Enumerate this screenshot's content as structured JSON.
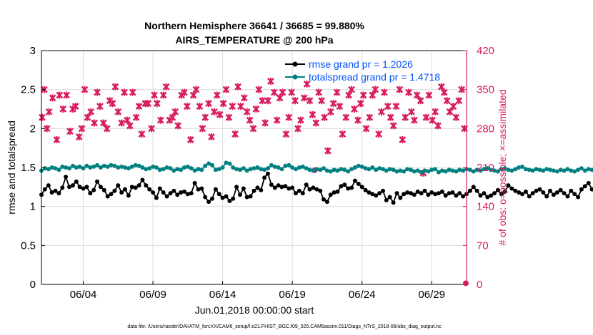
{
  "chart_data": {
    "type": "line",
    "title": "Northern Hemisphere 36641 / 36685 = 99.880%",
    "subtitle": "AIRS_TEMPERATURE @ 200 hPa",
    "xlabel": "Jun.01,2018 00:00:00 start",
    "ylabel": "rmse and totalspread",
    "y2label": "# of obs: o=possible; ×=assimilated",
    "footer": "data file: /Users/raeder/DAI/ATM_forcXX/CAM6_setup/f.e21.FHIST_BGC.f09_025.CAM6assim.011/Diags_NTrS_2018-06/obs_diag_output.nc",
    "xlim": [
      1,
      31.5
    ],
    "ylim": [
      0,
      3
    ],
    "y2lim": [
      0,
      420
    ],
    "x_ticks": [
      4,
      9,
      14,
      19,
      24,
      29
    ],
    "x_tick_labels": [
      "06/04",
      "06/09",
      "06/14",
      "06/19",
      "06/24",
      "06/29"
    ],
    "y_ticks": [
      0,
      0.5,
      1,
      1.5,
      2,
      2.5,
      3
    ],
    "y_tick_labels": [
      "0",
      "0.5",
      "1",
      "1.5",
      "2",
      "2.5",
      "3"
    ],
    "y2_ticks": [
      0,
      70,
      140,
      210,
      280,
      350,
      420
    ],
    "y2_tick_labels": [
      "0",
      "70",
      "140",
      "210",
      "280",
      "350",
      "420"
    ],
    "grid": true,
    "legend_position": "top-right",
    "x_step_days": 0.25,
    "colors": {
      "rmse": "#000000",
      "spread": "#008080",
      "obs": "#d81b60",
      "right_axis": "#d81b60",
      "legend_text": "#0050ff"
    },
    "series": [
      {
        "name": "rmse grand pr = 1.2026",
        "axis": "left",
        "values": [
          1.15,
          1.22,
          1.27,
          1.18,
          1.2,
          1.17,
          1.24,
          1.38,
          1.25,
          1.27,
          1.32,
          1.25,
          1.23,
          1.25,
          1.17,
          1.21,
          1.32,
          1.25,
          1.21,
          1.13,
          1.16,
          1.2,
          1.27,
          1.18,
          1.22,
          1.14,
          1.25,
          1.24,
          1.27,
          1.34,
          1.27,
          1.22,
          1.18,
          1.11,
          1.23,
          1.18,
          1.13,
          1.17,
          1.2,
          1.15,
          1.18,
          1.19,
          1.16,
          1.17,
          1.3,
          1.22,
          1.23,
          1.12,
          1.06,
          1.1,
          1.22,
          1.16,
          1.11,
          1.13,
          1.07,
          1.1,
          1.25,
          1.15,
          1.23,
          1.12,
          1.13,
          1.2,
          1.24,
          1.21,
          1.37,
          1.42,
          1.28,
          1.24,
          1.27,
          1.25,
          1.26,
          1.23,
          1.24,
          1.17,
          1.2,
          1.17,
          1.28,
          1.22,
          1.24,
          1.22,
          1.2,
          1.09,
          1.06,
          1.15,
          1.18,
          1.19,
          1.26,
          1.28,
          1.23,
          1.24,
          1.33,
          1.29,
          1.25,
          1.21,
          1.18,
          1.16,
          1.14,
          1.17,
          1.2,
          1.08,
          1.12,
          1.05,
          1.17,
          1.11,
          1.16,
          1.18,
          1.17,
          1.15,
          1.19,
          1.17,
          1.2,
          1.15,
          1.18,
          1.16,
          1.17,
          1.19,
          1.14,
          1.17,
          1.18,
          1.14,
          1.17,
          1.13,
          1.16,
          1.2,
          1.25,
          1.2,
          1.14,
          1.17,
          1.12,
          1.14,
          1.17,
          1.21,
          1.16,
          1.19,
          1.27,
          1.23,
          1.2,
          1.18,
          1.16,
          1.19,
          1.13,
          1.17,
          1.2,
          1.22,
          1.18,
          1.13,
          1.2,
          1.15,
          1.18,
          1.21,
          1.17,
          1.13,
          1.2,
          1.16,
          1.12,
          1.22,
          1.26,
          1.3,
          1.22,
          1.25,
          1.21,
          1.17,
          1.15,
          1.18,
          1.21,
          1.25,
          1.28,
          1.22,
          1.19,
          1.24,
          1.21,
          1.18,
          1.22,
          1.26,
          1.2,
          1.16,
          1.18,
          1.22,
          1.17,
          1.15,
          1.19,
          1.23,
          1.16,
          1.18,
          1.27,
          1.21,
          1.17,
          1.14,
          1.15,
          1.13,
          1.18,
          1.15,
          1.22,
          1.13,
          1.14,
          1.13,
          1.24,
          1.16,
          1.21,
          1.14,
          1.16,
          1.21,
          1.18,
          1.15,
          1.13,
          1.18,
          1.19,
          1.32,
          1.26,
          1.29,
          1.2,
          1.17,
          1.23,
          1.18,
          1.25,
          1.36,
          1.2,
          1.17,
          1.13,
          1.23,
          1.25,
          1.33,
          1.29,
          1.21,
          1.17,
          1.25,
          1.2,
          1.22,
          1.16,
          1.17,
          1.21,
          1.12,
          1.13,
          1.14
        ]
      },
      {
        "name": "totalspread grand pr = 1.4718",
        "axis": "left",
        "values": [
          1.46,
          1.49,
          1.48,
          1.5,
          1.49,
          1.47,
          1.51,
          1.5,
          1.49,
          1.52,
          1.5,
          1.51,
          1.49,
          1.52,
          1.5,
          1.51,
          1.53,
          1.5,
          1.52,
          1.51,
          1.53,
          1.52,
          1.5,
          1.51,
          1.5,
          1.49,
          1.51,
          1.53,
          1.52,
          1.5,
          1.48,
          1.49,
          1.51,
          1.5,
          1.47,
          1.48,
          1.5,
          1.49,
          1.46,
          1.48,
          1.47,
          1.5,
          1.51,
          1.49,
          1.46,
          1.48,
          1.47,
          1.52,
          1.55,
          1.53,
          1.47,
          1.48,
          1.5,
          1.56,
          1.55,
          1.5,
          1.48,
          1.47,
          1.49,
          1.46,
          1.48,
          1.49,
          1.5,
          1.48,
          1.47,
          1.49,
          1.53,
          1.51,
          1.5,
          1.48,
          1.52,
          1.53,
          1.5,
          1.48,
          1.5,
          1.51,
          1.49,
          1.47,
          1.46,
          1.48,
          1.47,
          1.49,
          1.46,
          1.45,
          1.47,
          1.46,
          1.48,
          1.47,
          1.45,
          1.48,
          1.5,
          1.52,
          1.51,
          1.49,
          1.48,
          1.5,
          1.47,
          1.49,
          1.48,
          1.46,
          1.48,
          1.47,
          1.45,
          1.46,
          1.45,
          1.48,
          1.47,
          1.45,
          1.46,
          1.44,
          1.46,
          1.45,
          1.47,
          1.48,
          1.44,
          1.46,
          1.45,
          1.47,
          1.46,
          1.45,
          1.47,
          1.46,
          1.48,
          1.47,
          1.45,
          1.47,
          1.46,
          1.48,
          1.49,
          1.47,
          1.46,
          1.45,
          1.48,
          1.49,
          1.47,
          1.46,
          1.48,
          1.5,
          1.51,
          1.48,
          1.47,
          1.46,
          1.48,
          1.47,
          1.46,
          1.48,
          1.47,
          1.46,
          1.45,
          1.47,
          1.46,
          1.48,
          1.46,
          1.45,
          1.47,
          1.49,
          1.46,
          1.48,
          1.47,
          1.49,
          1.5,
          1.48,
          1.47,
          1.49,
          1.51,
          1.5,
          1.48,
          1.46,
          1.48,
          1.47,
          1.49,
          1.48,
          1.46,
          1.47,
          1.49,
          1.48,
          1.47,
          1.45,
          1.47,
          1.48,
          1.5,
          1.49,
          1.47,
          1.46,
          1.48,
          1.49,
          1.5,
          1.47,
          1.49,
          1.51,
          1.5,
          1.48,
          1.47,
          1.49,
          1.5,
          1.51,
          1.49,
          1.47,
          1.48,
          1.5,
          1.49,
          1.47,
          1.46,
          1.48,
          1.47,
          1.49,
          1.48,
          1.46,
          1.47,
          1.48,
          1.5,
          1.49,
          1.47,
          1.49,
          1.48,
          1.47,
          1.49,
          1.51,
          1.5,
          1.48,
          1.47,
          1.49,
          1.48,
          1.47,
          1.49,
          1.47,
          1.46,
          1.48,
          1.47,
          1.49,
          1.48,
          1.47,
          1.46,
          1.48,
          1.49,
          1.48,
          1.47,
          1.5,
          1.49,
          1.51,
          1.5
        ]
      },
      {
        "name": "# of obs assimilated",
        "axis": "right",
        "marker": "x",
        "x": [
          1.05,
          1.2,
          1.4,
          1.55,
          1.8,
          2.1,
          2.3,
          2.55,
          2.8,
          3.05,
          3.25,
          3.45,
          3.7,
          3.9,
          4.1,
          4.3,
          4.55,
          4.8,
          5.0,
          5.2,
          5.45,
          5.7,
          5.9,
          6.1,
          6.3,
          6.5,
          6.75,
          6.95,
          7.15,
          7.35,
          7.55,
          7.8,
          8.0,
          8.2,
          8.45,
          8.65,
          8.9,
          9.1,
          9.3,
          9.55,
          9.75,
          9.95,
          10.2,
          10.4,
          10.6,
          10.8,
          11.05,
          11.25,
          11.45,
          11.7,
          11.9,
          12.1,
          12.35,
          12.55,
          12.75,
          13.0,
          13.2,
          13.4,
          13.6,
          13.8,
          14.05,
          14.25,
          14.45,
          14.7,
          14.9,
          15.1,
          15.3,
          15.55,
          15.75,
          15.95,
          16.2,
          16.4,
          16.6,
          16.85,
          17.05,
          17.25,
          17.45,
          17.7,
          17.9,
          18.1,
          18.3,
          18.55,
          18.75,
          18.95,
          19.2,
          19.4,
          19.6,
          19.85,
          20.05,
          20.25,
          20.45,
          20.7,
          20.9,
          21.1,
          21.3,
          21.55,
          21.75,
          21.95,
          22.2,
          22.4,
          22.6,
          22.85,
          23.05,
          23.25,
          23.45,
          23.7,
          23.9,
          24.1,
          24.3,
          24.55,
          24.75,
          24.95,
          25.2,
          25.4,
          25.6,
          25.85,
          26.05,
          26.25,
          26.45,
          26.7,
          26.9,
          27.1,
          27.35,
          27.55,
          27.75,
          27.95,
          28.2,
          28.4,
          28.6,
          28.8,
          29.05,
          29.25,
          29.45,
          29.7,
          29.9,
          30.1,
          30.3,
          30.55,
          30.75,
          30.95,
          31.15,
          31.35
        ],
        "values": [
          300,
          350,
          280,
          310,
          335,
          260,
          340,
          315,
          340,
          275,
          315,
          320,
          265,
          280,
          350,
          300,
          310,
          290,
          345,
          320,
          290,
          280,
          330,
          325,
          355,
          310,
          290,
          345,
          295,
          285,
          345,
          300,
          320,
          270,
          325,
          325,
          280,
          340,
          325,
          295,
          340,
          355,
          295,
          300,
          310,
          285,
          340,
          345,
          320,
          260,
          340,
          350,
          320,
          280,
          300,
          325,
          265,
          310,
          340,
          305,
          325,
          350,
          300,
          320,
          270,
          355,
          320,
          335,
          310,
          295,
          280,
          315,
          350,
          330,
          290,
          330,
          365,
          345,
          295,
          335,
          345,
          270,
          300,
          345,
          330,
          280,
          295,
          335,
          360,
          330,
          305,
          290,
          345,
          330,
          300,
          240,
          310,
          325,
          345,
          320,
          270,
          300,
          340,
          350,
          315,
          295,
          325,
          340,
          280,
          300,
          340,
          350,
          270,
          310,
          345,
          320,
          300,
          285,
          320,
          350,
          260,
          300,
          345,
          310,
          295,
          340,
          330,
          200,
          300,
          340,
          295,
          310,
          285,
          355,
          345,
          330,
          310,
          320,
          300,
          330,
          350,
          280
        ]
      },
      {
        "name": "# of obs possible",
        "axis": "right",
        "marker": "o",
        "x": [
          20.6,
          31.45
        ],
        "values": [
          205,
          2
        ]
      }
    ]
  }
}
